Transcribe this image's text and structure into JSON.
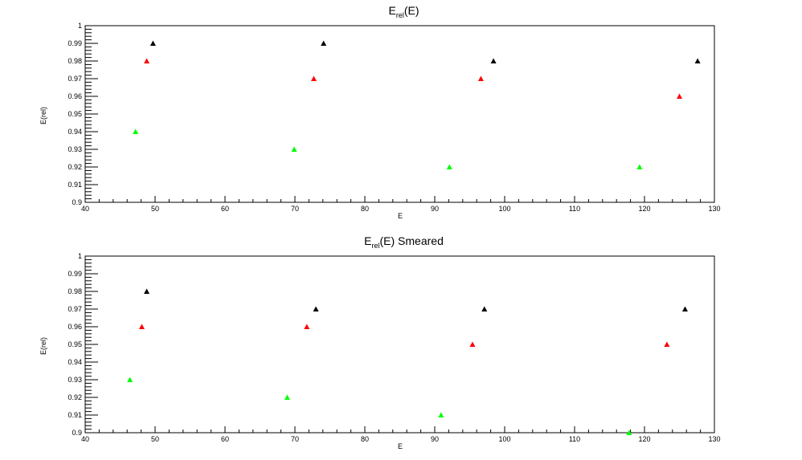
{
  "chart_data": [
    {
      "type": "scatter",
      "title": "E",
      "title_sub": "rel",
      "title_tail": "(E)",
      "xlabel": "E",
      "ylabel": "E(rel)",
      "xlim": [
        40,
        130
      ],
      "ylim": [
        0.9,
        1.0
      ],
      "x_ticks": [
        "40",
        "50",
        "60",
        "70",
        "80",
        "90",
        "100",
        "110",
        "120",
        "130"
      ],
      "y_ticks": [
        "0.9",
        "0.91",
        "0.92",
        "0.93",
        "0.94",
        "0.95",
        "0.96",
        "0.97",
        "0.98",
        "0.99",
        "1"
      ],
      "marker": "triangle",
      "grid": false,
      "series": [
        {
          "color": "#000000",
          "points": [
            [
              49.7,
              0.99
            ],
            [
              74.1,
              0.99
            ],
            [
              98.4,
              0.98
            ],
            [
              127.6,
              0.98
            ]
          ]
        },
        {
          "color": "#ff0000",
          "points": [
            [
              48.8,
              0.98
            ],
            [
              72.7,
              0.97
            ],
            [
              96.6,
              0.97
            ],
            [
              125.0,
              0.96
            ]
          ]
        },
        {
          "color": "#00ff00",
          "points": [
            [
              47.2,
              0.94
            ],
            [
              69.9,
              0.93
            ],
            [
              92.1,
              0.92
            ],
            [
              119.3,
              0.92
            ]
          ]
        }
      ]
    },
    {
      "type": "scatter",
      "title": "E",
      "title_sub": "rel",
      "title_tail": "(E) Smeared",
      "xlabel": "E",
      "ylabel": "E(rel)",
      "xlim": [
        40,
        130
      ],
      "ylim": [
        0.9,
        1.0
      ],
      "x_ticks": [
        "40",
        "50",
        "60",
        "70",
        "80",
        "90",
        "100",
        "110",
        "120",
        "130"
      ],
      "y_ticks": [
        "0.9",
        "0.91",
        "0.92",
        "0.93",
        "0.94",
        "0.95",
        "0.96",
        "0.97",
        "0.98",
        "0.99",
        "1"
      ],
      "marker": "triangle",
      "grid": false,
      "series": [
        {
          "color": "#000000",
          "points": [
            [
              48.8,
              0.98
            ],
            [
              73.0,
              0.97
            ],
            [
              97.1,
              0.97
            ],
            [
              125.8,
              0.97
            ]
          ]
        },
        {
          "color": "#ff0000",
          "points": [
            [
              48.1,
              0.96
            ],
            [
              71.7,
              0.96
            ],
            [
              95.4,
              0.95
            ],
            [
              123.2,
              0.95
            ]
          ]
        },
        {
          "color": "#00ff00",
          "points": [
            [
              46.4,
              0.93
            ],
            [
              68.9,
              0.92
            ],
            [
              90.9,
              0.91
            ],
            [
              117.8,
              0.9
            ]
          ]
        }
      ]
    }
  ]
}
